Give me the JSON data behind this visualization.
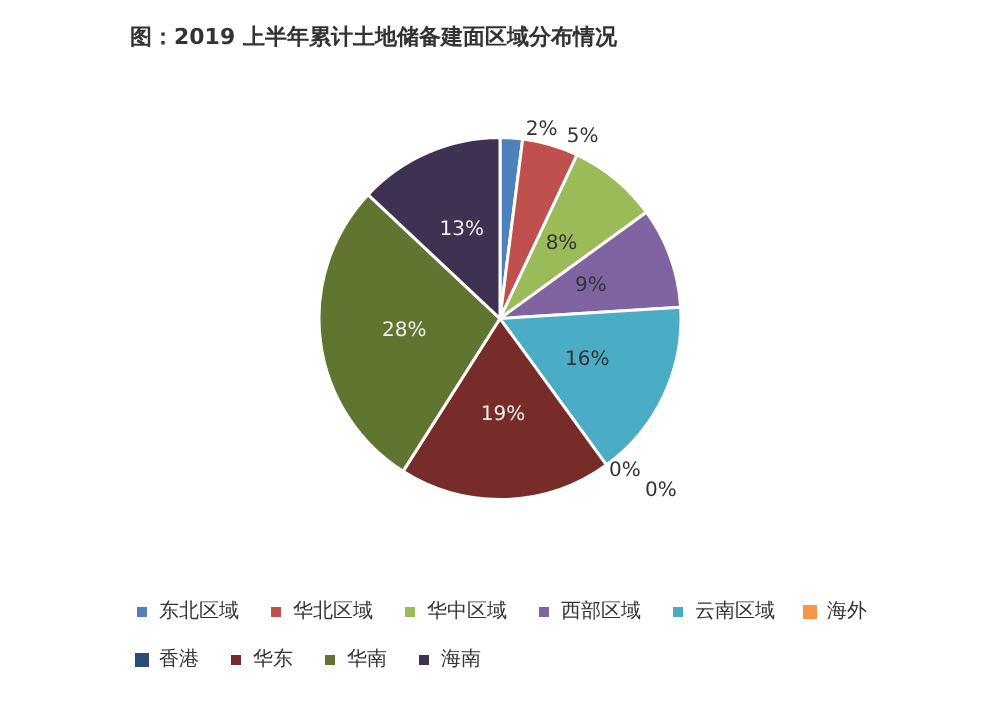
{
  "chart_data": {
    "type": "pie",
    "title": "图：2019 上半年累计土地储备建面区域分布情况",
    "categories": [
      "东北区域",
      "华北区域",
      "华中区域",
      "西部区域",
      "云南区域",
      "海外",
      "香港",
      "华东",
      "华南",
      "海南"
    ],
    "values": [
      2,
      5,
      8,
      9,
      16,
      0,
      0,
      19,
      28,
      13
    ],
    "colors": [
      "#4f81bd",
      "#c0504d",
      "#9bbb59",
      "#8064a2",
      "#4bacc6",
      "#f79646",
      "#2c4d75",
      "#772c2a",
      "#5f7530",
      "#3f3151"
    ],
    "value_labels": [
      "2%",
      "5%",
      "8%",
      "9%",
      "16%",
      "0%",
      "0%",
      "19%",
      "28%",
      "13%"
    ],
    "legend": "bottom"
  }
}
